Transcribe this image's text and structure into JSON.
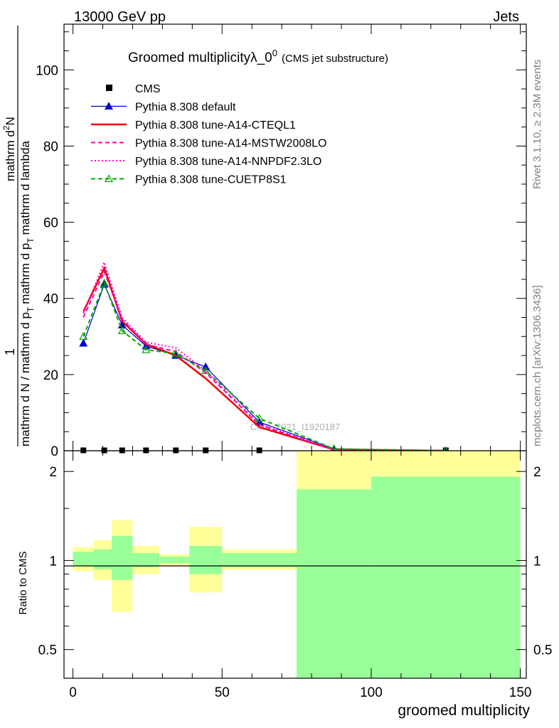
{
  "header": {
    "energy": "13000 GeV pp",
    "category": "Jets",
    "plot_title": "Groomed multiplicityλ_0",
    "plot_title_sup": "0",
    "plot_subtitle": "(CMS jet substructure)",
    "watermark": "CMS_2021_I1920187",
    "side_label_top": "Rivet 3.1.10, ≥ 2.3M events",
    "side_label_bottom": "mcplots.cern.ch [arXiv:1306.3436]"
  },
  "chart_data": [
    {
      "type": "line",
      "title": "Groomed multiplicityλ_0^0 (CMS jet substructure)",
      "xlabel": "groomed multiplicity",
      "ylabel_lines": [
        "1",
        "mathrm d N / mathrm d p_T mathrm d p_T mathrm d lambda",
        "mathrm d^2N"
      ],
      "ylabel_numer": "mathrm d²N",
      "ylabel_denom": "mathrm d N / mathrm d p",
      "ylabel_denom_rest": "mathrm d p",
      "ylabel_denom_tail": "mathrm d lambda",
      "ylabel_sub": "T",
      "ylabel_one": "1",
      "xlim": [
        -3,
        152
      ],
      "ylim": [
        0,
        112
      ],
      "yticks": [
        0,
        20,
        40,
        60,
        80,
        100
      ],
      "xticks": [
        0,
        50,
        100,
        150
      ],
      "legend_position": "top-left",
      "series": [
        {
          "name": "CMS",
          "color": "#000000",
          "marker": "square",
          "x": [
            3.5,
            10.5,
            16.5,
            24.5,
            34.5,
            44.5,
            62.5,
            125
          ],
          "y": [
            0.1,
            0.1,
            0.1,
            0.1,
            0.1,
            0.1,
            0.1,
            0.1
          ]
        },
        {
          "name": "Pythia 8.308 default",
          "color": "#0000cc",
          "marker": "triangle",
          "x": [
            3.5,
            10.5,
            16.5,
            24.5,
            34.5,
            44.5,
            62.5,
            87.5,
            125
          ],
          "y": [
            28.2,
            43.7,
            33.0,
            27.5,
            25.0,
            22.0,
            7.5,
            0.5,
            0.0
          ]
        },
        {
          "name": "Pythia 8.308 tune-A14-CTEQL1",
          "color": "#ee0000",
          "style": "solid",
          "x": [
            3.5,
            10.5,
            16.5,
            24.5,
            34.5,
            44.5,
            62.5,
            87.5,
            125
          ],
          "y": [
            36.5,
            48.0,
            34.0,
            28.0,
            25.0,
            19.0,
            6.2,
            0.3,
            0.0
          ]
        },
        {
          "name": "Pythia 8.308 tune-A14-MSTW2008LO",
          "color": "#ff00aa",
          "style": "dashed",
          "x": [
            3.5,
            10.5,
            16.5,
            24.5,
            34.5,
            44.5,
            62.5,
            87.5,
            125
          ],
          "y": [
            35.0,
            47.0,
            34.5,
            28.0,
            26.0,
            20.5,
            6.8,
            0.3,
            0.0
          ]
        },
        {
          "name": "Pythia 8.308 tune-A14-NNPDF2.3LO",
          "color": "#ff00dd",
          "style": "dotted",
          "x": [
            3.5,
            10.5,
            16.5,
            24.5,
            34.5,
            44.5,
            62.5,
            87.5,
            125
          ],
          "y": [
            36.0,
            49.5,
            35.0,
            28.5,
            27.0,
            21.0,
            7.0,
            0.3,
            0.0
          ]
        },
        {
          "name": "Pythia 8.308 tune-CUETP8S1",
          "color": "#00aa00",
          "style": "dashed",
          "marker": "open-triangle",
          "x": [
            3.5,
            10.5,
            16.5,
            24.5,
            34.5,
            44.5,
            62.5,
            87.5,
            125
          ],
          "y": [
            30.0,
            44.0,
            31.5,
            26.5,
            25.5,
            21.0,
            8.5,
            0.5,
            0.0
          ]
        }
      ]
    },
    {
      "type": "ratio-band",
      "ylabel": "Ratio to CMS",
      "xlim": [
        -3,
        152
      ],
      "ylim": [
        0.4,
        2.35
      ],
      "ylog": true,
      "yticks": [
        0.5,
        1,
        2
      ],
      "ytick_labels": [
        "0.5",
        "1",
        "2"
      ],
      "reference": 1,
      "bins": [
        {
          "x0": 0,
          "x1": 7,
          "inner": [
            0.96,
            1.07
          ],
          "outer": [
            0.92,
            1.11
          ]
        },
        {
          "x0": 7,
          "x1": 13,
          "inner": [
            0.935,
            1.09
          ],
          "outer": [
            0.86,
            1.17
          ]
        },
        {
          "x0": 13,
          "x1": 20,
          "inner": [
            0.86,
            1.21
          ],
          "outer": [
            0.67,
            1.37
          ]
        },
        {
          "x0": 20,
          "x1": 29,
          "inner": [
            0.95,
            1.06
          ],
          "outer": [
            0.9,
            1.12
          ]
        },
        {
          "x0": 29,
          "x1": 39,
          "inner": [
            0.98,
            1.03
          ],
          "outer": [
            0.96,
            1.05
          ]
        },
        {
          "x0": 39,
          "x1": 50,
          "inner": [
            0.9,
            1.12
          ],
          "outer": [
            0.78,
            1.3
          ]
        },
        {
          "x0": 50,
          "x1": 75,
          "inner": [
            0.95,
            1.06
          ],
          "outer": [
            0.93,
            1.09
          ]
        },
        {
          "x0": 75,
          "x1": 100,
          "inner": [
            0.38,
            1.74
          ],
          "outer": [
            0.38,
            2.4
          ]
        },
        {
          "x0": 100,
          "x1": 150,
          "inner": [
            0.38,
            1.92
          ],
          "outer": [
            0.38,
            2.4
          ]
        }
      ],
      "colors": {
        "inner": "#99ff99",
        "outer": "#ffff99"
      }
    }
  ]
}
